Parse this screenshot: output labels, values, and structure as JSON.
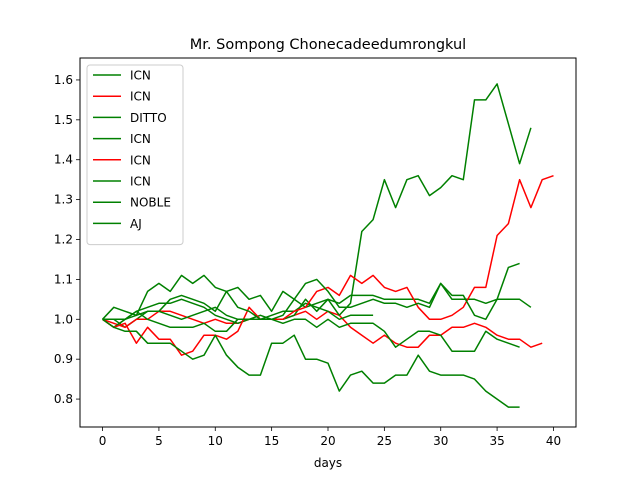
{
  "chart_data": {
    "type": "line",
    "title": "Mr. Sompong Chonecadeedumrongkul",
    "xlabel": "days",
    "ylabel": "",
    "xlim": [
      -2,
      42
    ],
    "ylim": [
      0.73,
      1.655
    ],
    "xticks": [
      0,
      5,
      10,
      15,
      20,
      25,
      30,
      35,
      40
    ],
    "yticks": [
      0.8,
      0.9,
      1.0,
      1.1,
      1.2,
      1.3,
      1.4,
      1.5,
      1.6
    ],
    "grid": false,
    "legend_position": "upper-left",
    "series": [
      {
        "name": "ICN",
        "color": "#008000",
        "x": [
          0,
          1,
          2,
          3,
          4,
          5,
          6,
          7,
          8,
          9,
          10,
          11,
          12,
          13,
          14,
          15,
          16,
          17,
          18,
          19,
          20,
          21,
          22,
          23,
          24,
          25,
          26,
          27,
          28,
          29,
          30,
          31,
          32,
          33,
          34,
          35,
          36,
          37,
          38
        ],
        "y": [
          1.0,
          1.0,
          0.98,
          1.0,
          1.02,
          1.02,
          1.05,
          1.06,
          1.05,
          1.04,
          1.02,
          1.07,
          1.08,
          1.05,
          1.06,
          1.02,
          1.07,
          1.05,
          1.03,
          1.04,
          1.05,
          1.04,
          1.06,
          1.06,
          1.06,
          1.05,
          1.05,
          1.05,
          1.05,
          1.04,
          1.09,
          1.05,
          1.05,
          1.05,
          1.04,
          1.05,
          1.05,
          1.05,
          1.03
        ]
      },
      {
        "name": "ICN",
        "color": "#ff0000",
        "x": [
          0,
          1,
          2,
          3,
          4,
          5,
          6,
          7,
          8,
          9,
          10,
          11,
          12,
          13,
          14,
          15,
          16,
          17,
          18,
          19,
          20,
          21,
          22,
          23,
          24,
          25,
          26,
          27,
          28,
          29,
          30,
          31,
          32,
          33,
          34,
          35,
          36,
          37,
          38,
          39
        ],
        "y": [
          1.0,
          0.99,
          0.98,
          1.0,
          1.0,
          1.02,
          1.02,
          1.01,
          1.0,
          0.99,
          1.0,
          0.99,
          0.99,
          1.0,
          1.0,
          1.0,
          1.0,
          1.01,
          1.02,
          1.0,
          1.02,
          1.01,
          0.98,
          0.96,
          0.94,
          0.96,
          0.94,
          0.93,
          0.93,
          0.96,
          0.96,
          0.98,
          0.98,
          0.99,
          0.98,
          0.96,
          0.95,
          0.95,
          0.93,
          0.94
        ]
      },
      {
        "name": "DITTO",
        "color": "#008000",
        "x": [
          0,
          1,
          2,
          3,
          4,
          5,
          6,
          7,
          8,
          9,
          10,
          11,
          12,
          13,
          14,
          15,
          16,
          17,
          18,
          19,
          20,
          21,
          22,
          23,
          24
        ],
        "y": [
          1.0,
          0.98,
          1.0,
          1.02,
          1.03,
          1.04,
          1.04,
          1.05,
          1.04,
          1.03,
          1.01,
          1.0,
          0.99,
          1.0,
          1.0,
          1.01,
          1.02,
          1.02,
          1.04,
          1.03,
          1.02,
          1.0,
          1.01,
          1.01,
          1.01
        ]
      },
      {
        "name": "ICN",
        "color": "#008000",
        "x": [
          0,
          1,
          2,
          3,
          4,
          5,
          6,
          7,
          8,
          9,
          10,
          11,
          12,
          13,
          14,
          15,
          16,
          17,
          18,
          19,
          20,
          21,
          22,
          23,
          24,
          25,
          26,
          27,
          28,
          29,
          30,
          31,
          32,
          33,
          34,
          35,
          36,
          37,
          38
        ],
        "y": [
          1.0,
          0.98,
          1.0,
          1.01,
          1.02,
          1.02,
          1.01,
          1.0,
          1.01,
          1.02,
          1.03,
          1.01,
          1.0,
          1.0,
          1.01,
          1.0,
          1.0,
          1.01,
          1.05,
          1.02,
          1.05,
          1.01,
          1.04,
          1.22,
          1.25,
          1.35,
          1.28,
          1.35,
          1.36,
          1.31,
          1.33,
          1.36,
          1.35,
          1.55,
          1.55,
          1.59,
          1.49,
          1.39,
          1.48
        ]
      },
      {
        "name": "ICN",
        "color": "#ff0000",
        "x": [
          0,
          1,
          2,
          3,
          4,
          5,
          6,
          7,
          8,
          9,
          10,
          11,
          12,
          13,
          14,
          15,
          16,
          17,
          18,
          19,
          20,
          21,
          22,
          23,
          24,
          25,
          26,
          27,
          28,
          29,
          30,
          31,
          32,
          33,
          34,
          35,
          36,
          37,
          38,
          39,
          40
        ],
        "y": [
          1.0,
          0.98,
          0.99,
          0.94,
          0.98,
          0.95,
          0.95,
          0.91,
          0.92,
          0.96,
          0.96,
          0.95,
          0.97,
          1.03,
          1.0,
          1.0,
          1.0,
          1.02,
          1.03,
          1.07,
          1.08,
          1.06,
          1.11,
          1.09,
          1.11,
          1.08,
          1.07,
          1.08,
          1.03,
          1.0,
          1.0,
          1.01,
          1.03,
          1.08,
          1.08,
          1.21,
          1.24,
          1.35,
          1.28,
          1.35,
          1.36
        ]
      },
      {
        "name": "ICN",
        "color": "#008000",
        "x": [
          0,
          1,
          2,
          3,
          4,
          5,
          6,
          7,
          8,
          9,
          10,
          11,
          12,
          13,
          14,
          15,
          16,
          17,
          18,
          19,
          20,
          21,
          22,
          23,
          24,
          25,
          26,
          27,
          28,
          29,
          30,
          31,
          32,
          33,
          34,
          35,
          36,
          37
        ],
        "y": [
          1.0,
          1.03,
          1.02,
          1.01,
          1.07,
          1.09,
          1.07,
          1.11,
          1.09,
          1.11,
          1.08,
          1.07,
          1.03,
          1.02,
          1.0,
          1.0,
          1.01,
          1.05,
          1.09,
          1.1,
          1.07,
          1.03,
          1.03,
          1.04,
          1.05,
          1.04,
          1.04,
          1.03,
          1.04,
          1.03,
          1.09,
          1.06,
          1.06,
          1.01,
          1.0,
          1.05,
          1.13,
          1.14
        ]
      },
      {
        "name": "NOBLE",
        "color": "#008000",
        "x": [
          0,
          1,
          2,
          3,
          4,
          5,
          6,
          7,
          8,
          9,
          10,
          11,
          12,
          13,
          14,
          15,
          16,
          17,
          18,
          19,
          20,
          21,
          22,
          23,
          24,
          25,
          26,
          27,
          28,
          29,
          30,
          31,
          32,
          33,
          34,
          35,
          36,
          37
        ],
        "y": [
          1.0,
          0.98,
          0.97,
          0.97,
          0.94,
          0.94,
          0.94,
          0.92,
          0.9,
          0.91,
          0.96,
          0.91,
          0.88,
          0.86,
          0.86,
          0.94,
          0.94,
          0.96,
          0.9,
          0.9,
          0.89,
          0.82,
          0.86,
          0.87,
          0.84,
          0.84,
          0.86,
          0.86,
          0.91,
          0.87,
          0.86,
          0.86,
          0.86,
          0.85,
          0.82,
          0.8,
          0.78,
          0.78
        ]
      },
      {
        "name": "AJ",
        "color": "#008000",
        "x": [
          0,
          1,
          2,
          3,
          4,
          5,
          6,
          7,
          8,
          9,
          10,
          11,
          12,
          13,
          14,
          15,
          16,
          17,
          18,
          19,
          20,
          21,
          22,
          23,
          24,
          25,
          26,
          27,
          28,
          29,
          30,
          31,
          32,
          33,
          34,
          35,
          36,
          37
        ],
        "y": [
          1.0,
          1.0,
          1.0,
          1.02,
          1.0,
          0.99,
          0.98,
          0.98,
          0.98,
          0.99,
          0.97,
          0.97,
          1.0,
          1.0,
          1.0,
          1.0,
          0.99,
          1.0,
          1.0,
          0.98,
          1.0,
          0.98,
          0.99,
          0.99,
          0.99,
          0.97,
          0.93,
          0.95,
          0.97,
          0.97,
          0.96,
          0.92,
          0.92,
          0.92,
          0.97,
          0.95,
          0.94,
          0.93
        ]
      }
    ]
  }
}
